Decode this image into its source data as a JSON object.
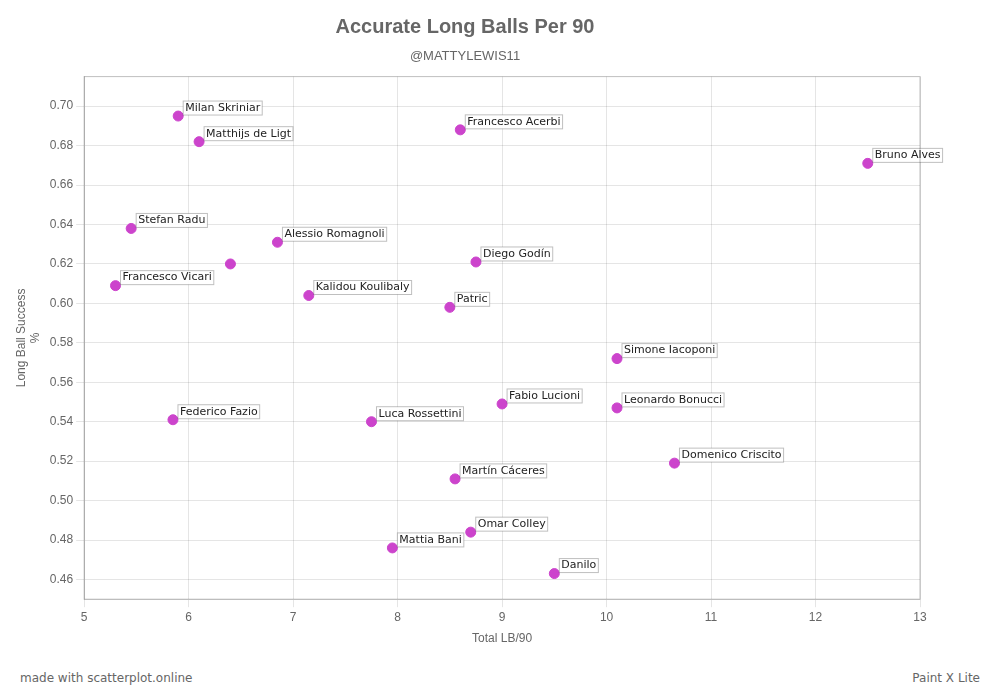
{
  "chart_data": {
    "type": "scatter",
    "title": "Accurate Long Balls Per 90",
    "subtitle": "@MATTYLEWIS11",
    "xlabel": "Total LB/90",
    "ylabel": "Long Ball Success\n%",
    "footer": "made with scatterplot.online",
    "watermark": "Paint X Lite",
    "color": "#cc44cc",
    "grid": true,
    "xlim": [
      5,
      13
    ],
    "ylim": [
      0.45,
      0.715
    ],
    "xticks": [
      5,
      6,
      7,
      8,
      9,
      10,
      11,
      12,
      13
    ],
    "yticks": [
      0.46,
      0.48,
      {
        "value": 0.5,
        "label": "0.50"
      },
      0.52,
      0.54,
      0.56,
      0.58,
      {
        "value": 0.6,
        "label": "0.60"
      },
      0.62,
      0.64,
      0.66,
      0.68,
      {
        "value": 0.7,
        "label": "0.70"
      }
    ],
    "x": [
      5.9,
      6.1,
      5.45,
      6.85,
      5.3,
      7.15,
      8.75,
      8.5,
      8.6,
      10.1,
      9.0,
      10.1,
      5.85,
      7.75,
      10.65,
      8.55,
      8.7,
      7.95,
      9.5,
      12.5,
      6.4
    ],
    "values": [
      0.695,
      0.682,
      0.638,
      0.631,
      0.609,
      0.604,
      0.621,
      0.598,
      0.688,
      0.572,
      0.549,
      0.547,
      0.541,
      0.54,
      0.519,
      0.511,
      0.484,
      0.476,
      0.463,
      0.671,
      0.62
    ],
    "annotations": [
      "Milan Skriniar",
      "Matthijs de Ligt",
      "Stefan Radu",
      "Alessio Romagnoli",
      "Francesco Vicari",
      "Kalidou Koulibaly",
      "Diego Godín",
      "Patric",
      "Francesco Acerbi",
      "Simone Iacoponi",
      "Fabio Lucioni",
      "Leonardo Bonucci",
      "Federico Fazio",
      "Luca Rossettini",
      "Domenico Criscito",
      "Martín Cáceres",
      "Omar Colley",
      "Mattia Bani",
      "Danilo",
      "Bruno Alves",
      null
    ]
  }
}
